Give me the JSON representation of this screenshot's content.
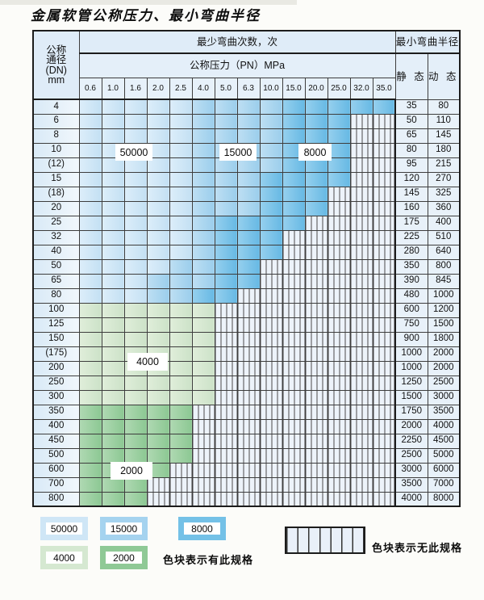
{
  "title": "金属软管公称压力、最小弯曲半径",
  "table": {
    "dn_header": [
      "公称",
      "通径",
      "(DN)",
      "mm"
    ],
    "cycles_header": "最少弯曲次数，次",
    "pressure_header": "公称压力（PN）MPa",
    "pressure_cols": [
      "0.6",
      "1.0",
      "1.6",
      "2.0",
      "2.5",
      "4.0",
      "5.0",
      "6.3",
      "10.0",
      "15.0",
      "20.0",
      "25.0",
      "32.0",
      "35.0"
    ],
    "radius_header": "最小弯曲半径",
    "static_label": "静 态",
    "dynamic_label": "动 态",
    "rows": [
      {
        "dn": "4",
        "cells": "LLLLLMMMMDDDDD",
        "static": "35",
        "dynamic": "80"
      },
      {
        "dn": "6",
        "cells": "LLLLLMMMMDDDXX",
        "static": "50",
        "dynamic": "110"
      },
      {
        "dn": "8",
        "cells": "LLLLLMMMMDDDXX",
        "static": "65",
        "dynamic": "145"
      },
      {
        "dn": "10",
        "cells": "LLLLLMMMMDDDXX",
        "static": "80",
        "dynamic": "180"
      },
      {
        "dn": "(12)",
        "cells": "LLLLLMMMMDDDXX",
        "static": "95",
        "dynamic": "215"
      },
      {
        "dn": "15",
        "cells": "LLLLLMMMDDDDXX",
        "static": "120",
        "dynamic": "270"
      },
      {
        "dn": "(18)",
        "cells": "LLLLLMMMDDDXXX",
        "static": "145",
        "dynamic": "325"
      },
      {
        "dn": "20",
        "cells": "LLLLLMMMDDDXXX",
        "static": "160",
        "dynamic": "360"
      },
      {
        "dn": "25",
        "cells": "LLLLLMDDDDXXXX",
        "static": "175",
        "dynamic": "400"
      },
      {
        "dn": "32",
        "cells": "LLLLLMDDDXXXXX",
        "static": "225",
        "dynamic": "510"
      },
      {
        "dn": "40",
        "cells": "LLLLLMDDDXXXXX",
        "static": "280",
        "dynamic": "640"
      },
      {
        "dn": "50",
        "cells": "LLLLMMDDXXXXXX",
        "static": "350",
        "dynamic": "800"
      },
      {
        "dn": "65",
        "cells": "LLLMMMDDXXXXXX",
        "static": "390",
        "dynamic": "845"
      },
      {
        "dn": "80",
        "cells": "LLLMMDDXXXXXXX",
        "static": "480",
        "dynamic": "1000"
      },
      {
        "dn": "100",
        "cells": "ggggggXXXXXXXX",
        "static": "600",
        "dynamic": "1200"
      },
      {
        "dn": "125",
        "cells": "ggggggXXXXXXXX",
        "static": "750",
        "dynamic": "1500"
      },
      {
        "dn": "150",
        "cells": "ggggggXXXXXXXX",
        "static": "900",
        "dynamic": "1800"
      },
      {
        "dn": "(175)",
        "cells": "ggggggXXXXXXXX",
        "static": "1000",
        "dynamic": "2000"
      },
      {
        "dn": "200",
        "cells": "ggggggXXXXXXXX",
        "static": "1000",
        "dynamic": "2000"
      },
      {
        "dn": "250",
        "cells": "ggggggXXXXXXXX",
        "static": "1250",
        "dynamic": "2500"
      },
      {
        "dn": "300",
        "cells": "ggggggXXXXXXXX",
        "static": "1500",
        "dynamic": "3000"
      },
      {
        "dn": "350",
        "cells": "GGGGGXXXXXXXXX",
        "static": "1750",
        "dynamic": "3500"
      },
      {
        "dn": "400",
        "cells": "GGGGGXXXXXXXXX",
        "static": "2000",
        "dynamic": "4000"
      },
      {
        "dn": "450",
        "cells": "GGGGGXXXXXXXXX",
        "static": "2250",
        "dynamic": "4500"
      },
      {
        "dn": "500",
        "cells": "GGGGGXXXXXXXXX",
        "static": "2500",
        "dynamic": "5000"
      },
      {
        "dn": "600",
        "cells": "GGGGXXXXXXXXXX",
        "static": "3000",
        "dynamic": "6000"
      },
      {
        "dn": "700",
        "cells": "GGGXXXXXXXXXXX",
        "static": "3500",
        "dynamic": "7000"
      },
      {
        "dn": "800",
        "cells": "GGGXXXXXXXXXXX",
        "static": "4000",
        "dynamic": "8000"
      }
    ]
  },
  "zone_labels": [
    {
      "text": "50000"
    },
    {
      "text": "15000"
    },
    {
      "text": "8000"
    },
    {
      "text": "4000"
    },
    {
      "text": "2000"
    }
  ],
  "legend": {
    "items": [
      {
        "label": "50000",
        "color": "light_blue"
      },
      {
        "label": "15000",
        "color": "mid_blue"
      },
      {
        "label": "8000",
        "color": "dark_blue"
      },
      {
        "label": "4000",
        "color": "light_green"
      },
      {
        "label": "2000",
        "color": "dark_green"
      }
    ],
    "has_spec_text": "色块表示有此规格",
    "no_spec_text": "色块表示无此规格"
  },
  "colors": {
    "light_blue": "#cfe6f6",
    "mid_blue": "#a5d3ef",
    "dark_blue": "#74c1e7",
    "light_green": "#d5e8d1",
    "dark_green": "#8fc996",
    "hatch_bg": "#edf3fa"
  }
}
